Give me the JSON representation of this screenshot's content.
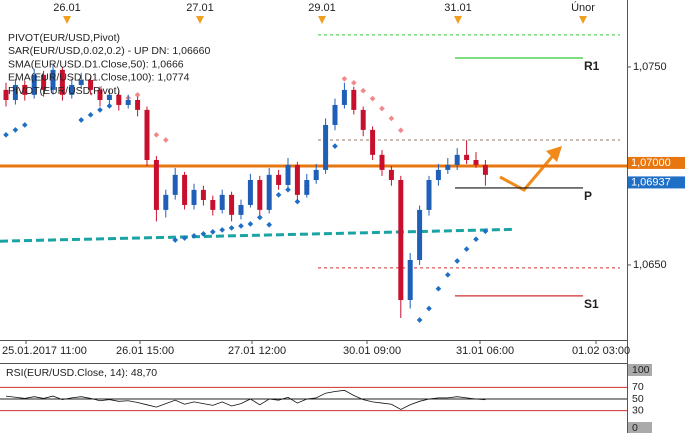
{
  "chart_data": {
    "type": "candlestick",
    "indicators": [
      {
        "text": "PIVOT(EUR/USD,Pivot)",
        "color": "#111111"
      },
      {
        "text": "SAR(EUR/USD,0.02,0.2) -  UP  DN: 1,06660",
        "color": "#e07a7a"
      },
      {
        "text": "SMA(EUR/USD.D1.Close,50): 1,0666",
        "color": "#1aa3a3"
      },
      {
        "text": "EMA(EUR/USD.D1.Close,100): 1,0774",
        "color": "#333333"
      },
      {
        "text": "PIVOT(EUR/USD,Pivot)",
        "color": "#111111"
      }
    ],
    "top_markers": [
      "26.01",
      "27.01",
      "29.01",
      "31.01",
      "Únor"
    ],
    "x_labels": [
      "25.01.2017 11:00",
      "26.01 15:00",
      "27.01 12:00",
      "30.01 09:00",
      "31.01 06:00",
      "01.02 03:00"
    ],
    "ylim": [
      1.06121,
      1.07838
    ],
    "yticks": [
      {
        "value": 1.075,
        "label": "1,0750"
      },
      {
        "value": 1.065,
        "label": "1,0650"
      }
    ],
    "up_color": "#1f5fb8",
    "down_color": "#c8102e",
    "ohlc": [
      [
        1.07384,
        1.0742,
        1.073,
        1.07333
      ],
      [
        1.07333,
        1.0744,
        1.0731,
        1.07409
      ],
      [
        1.07409,
        1.0743,
        1.0733,
        1.07359
      ],
      [
        1.07359,
        1.0749,
        1.0734,
        1.0746
      ],
      [
        1.0746,
        1.0748,
        1.0735,
        1.07384
      ],
      [
        1.07384,
        1.0751,
        1.0736,
        1.07485
      ],
      [
        1.07485,
        1.075,
        1.0733,
        1.07359
      ],
      [
        1.07359,
        1.0744,
        1.0734,
        1.07409
      ],
      [
        1.07409,
        1.0747,
        1.0739,
        1.07434
      ],
      [
        1.07434,
        1.0745,
        1.0736,
        1.07384
      ],
      [
        1.07384,
        1.074,
        1.073,
        1.07333
      ],
      [
        1.07333,
        1.0739,
        1.0731,
        1.07359
      ],
      [
        1.07359,
        1.0738,
        1.0728,
        1.07308
      ],
      [
        1.07308,
        1.0736,
        1.0729,
        1.07333
      ],
      [
        1.07333,
        1.0735,
        1.0725,
        1.07283
      ],
      [
        1.07283,
        1.073,
        1.07,
        1.0703
      ],
      [
        1.0703,
        1.0705,
        1.0672,
        1.06778
      ],
      [
        1.06778,
        1.0688,
        1.0674,
        1.06854
      ],
      [
        1.06854,
        1.0699,
        1.0683,
        1.06955
      ],
      [
        1.06955,
        1.0697,
        1.0678,
        1.06803
      ],
      [
        1.06803,
        1.0691,
        1.0678,
        1.06879
      ],
      [
        1.06879,
        1.069,
        1.068,
        1.06828
      ],
      [
        1.06828,
        1.0685,
        1.0675,
        1.06778
      ],
      [
        1.06778,
        1.0688,
        1.0676,
        1.06854
      ],
      [
        1.06854,
        1.0687,
        1.0672,
        1.06753
      ],
      [
        1.06753,
        1.0683,
        1.0673,
        1.06803
      ],
      [
        1.06803,
        1.0696,
        1.0679,
        1.06929
      ],
      [
        1.06929,
        1.0695,
        1.0675,
        1.06778
      ],
      [
        1.06778,
        1.0699,
        1.0676,
        1.06955
      ],
      [
        1.06955,
        1.0698,
        1.0688,
        1.06904
      ],
      [
        1.06904,
        1.0704,
        1.0689,
        1.07005
      ],
      [
        1.07005,
        1.0702,
        1.0683,
        1.06854
      ],
      [
        1.06854,
        1.0696,
        1.0684,
        1.06929
      ],
      [
        1.06929,
        1.0701,
        1.0691,
        1.0698
      ],
      [
        1.0698,
        1.0724,
        1.0696,
        1.07207
      ],
      [
        1.07207,
        1.0734,
        1.0718,
        1.07308
      ],
      [
        1.07308,
        1.0742,
        1.0729,
        1.07384
      ],
      [
        1.07384,
        1.074,
        1.0726,
        1.07283
      ],
      [
        1.07283,
        1.073,
        1.0715,
        1.07182
      ],
      [
        1.07182,
        1.072,
        1.0703,
        1.07056
      ],
      [
        1.07056,
        1.0708,
        1.0695,
        1.0698
      ],
      [
        1.0698,
        1.07,
        1.069,
        1.06929
      ],
      [
        1.06929,
        1.0695,
        1.06232,
        1.06323
      ],
      [
        1.06323,
        1.0656,
        1.0628,
        1.06525
      ],
      [
        1.06525,
        1.068,
        1.065,
        1.06778
      ],
      [
        1.06778,
        1.0695,
        1.0675,
        1.06929
      ],
      [
        1.06929,
        1.0701,
        1.069,
        1.0698
      ],
      [
        1.0698,
        1.0704,
        1.0696,
        1.07005
      ],
      [
        1.07005,
        1.0709,
        1.0698,
        1.07056
      ],
      [
        1.07056,
        1.0713,
        1.0701,
        1.0703
      ],
      [
        1.0703,
        1.0707,
        1.0699,
        1.07005
      ],
      [
        1.07005,
        1.0703,
        1.069,
        1.06955
      ]
    ],
    "sar": [
      1.07157,
      1.07182,
      1.07207,
      null,
      null,
      null,
      null,
      null,
      1.07232,
      1.07258,
      1.07283,
      1.07303,
      1.07323,
      1.07343,
      1.07359,
      1.07182,
      1.07157,
      1.07131,
      1.06626,
      1.06636,
      1.06647,
      1.06657,
      1.06667,
      1.06677,
      1.06687,
      1.06697,
      1.06707,
      1.0674,
      1.06703,
      1.06854,
      1.0688,
      1.0682,
      1.069,
      1.0694,
      1.0706,
      1.071,
      1.0744,
      1.0742,
      1.0738,
      1.0734,
      1.0729,
      1.0724,
      1.0718,
      null,
      1.06222,
      1.0628,
      1.0638,
      1.0645,
      1.0652,
      1.0658,
      1.0663,
      1.0667
    ],
    "sar_colors": [
      "#1f6fc6",
      "#f08a8a"
    ],
    "sma": [
      1.0662,
      1.0668
    ],
    "sma_color": "#1aa3a3",
    "pivots": [
      {
        "label": "R1",
        "value": 1.07545,
        "color": "#33cc33"
      },
      {
        "label": "P",
        "value": 1.06889,
        "color": "#111111"
      },
      {
        "label": "S1",
        "value": 1.06344,
        "color": "#d03030"
      }
    ],
    "levels": [
      {
        "value": 1.07662,
        "color": "#33cc33"
      },
      {
        "value": 1.07131,
        "color": "#9a7a6a"
      },
      {
        "value": 1.06485,
        "color": "#d03030"
      }
    ],
    "price_markers": [
      {
        "value": 1.07,
        "label": "1,07000",
        "color": "#e8760f"
      },
      {
        "value": 1.06937,
        "label": "1,06937",
        "color": "#1f6fc6"
      }
    ],
    "rsi": {
      "title": "RSI(EUR/USD.Close, 14): 48,70",
      "ylim": [
        0,
        100
      ],
      "yticks": [
        100,
        70,
        50,
        30,
        0
      ],
      "values": [
        55,
        53,
        51,
        54,
        51,
        55,
        49,
        52,
        54,
        51,
        47,
        49,
        46,
        47,
        44,
        40,
        36,
        42,
        48,
        41,
        45,
        42,
        39,
        45,
        38,
        42,
        50,
        40,
        50,
        48,
        53,
        43,
        50,
        52,
        60,
        63,
        65,
        56,
        49,
        45,
        43,
        41,
        32,
        40,
        46,
        50,
        52,
        52,
        54,
        52,
        50,
        48.7
      ],
      "color": "#111111"
    }
  }
}
